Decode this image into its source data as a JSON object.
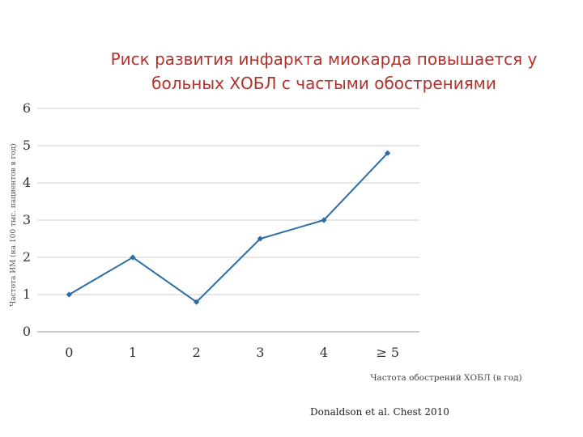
{
  "chart_data": {
    "type": "line",
    "title_line1": "Риск развития инфаркта миокарда повышается у",
    "title_line2": "больных ХОБЛ с частыми обострениями",
    "xlabel": "Частота обострений ХОБЛ (в год)",
    "ylabel": "Частота ИМ (на 100 тыс. пациентов в год)",
    "categories": [
      "0",
      "1",
      "2",
      "3",
      "4",
      "≥ 5"
    ],
    "values": [
      1,
      2,
      0.8,
      2.5,
      3,
      4.8
    ],
    "ylim": [
      0,
      6
    ],
    "yticks": [
      "0",
      "1",
      "2",
      "3",
      "4",
      "5",
      "6"
    ],
    "grid": true,
    "line_color": "#2e6da4"
  },
  "footer": {
    "source": "Donaldson et al. Chest 2010"
  }
}
